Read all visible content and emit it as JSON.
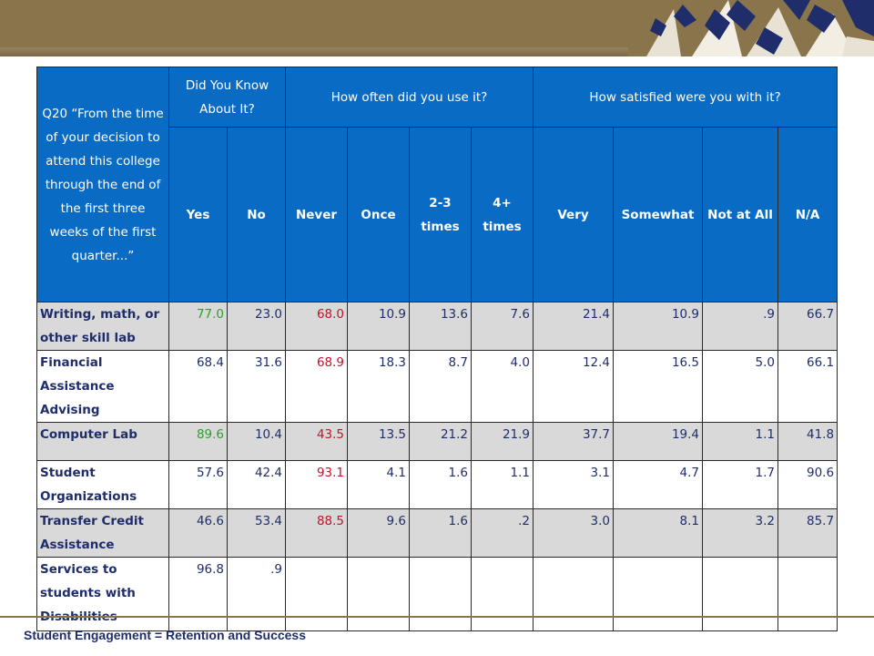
{
  "footer": {
    "text": "Student Engagement = Retention and Success"
  },
  "table": {
    "question_header": "Q20 “From the time of your decision to attend this college through the end of the first three weeks of the first quarter...”",
    "groups": [
      "Did You Know About It?",
      "How often did you use it?",
      "How satisfied were you with it?"
    ],
    "columns": [
      "Yes",
      "No",
      "Never",
      "Once",
      "2-3 times",
      "4+ times",
      "Very",
      "Somewhat",
      "Not at All",
      "N/A"
    ],
    "rows": [
      {
        "label": "Writing, math, or other skill lab",
        "values": [
          "77.0",
          "23.0",
          "68.0",
          "10.9",
          "13.6",
          "7.6",
          "21.4",
          "10.9",
          ".9",
          "66.7"
        ]
      },
      {
        "label": "Financial Assistance Advising",
        "values": [
          "68.4",
          "31.6",
          "68.9",
          "18.3",
          "8.7",
          "4.0",
          "12.4",
          "16.5",
          "5.0",
          "66.1"
        ]
      },
      {
        "label": "Computer Lab",
        "values": [
          "89.6",
          "10.4",
          "43.5",
          "13.5",
          "21.2",
          "21.9",
          "37.7",
          "19.4",
          "1.1",
          "41.8"
        ]
      },
      {
        "label": "Student Organizations",
        "values": [
          "57.6",
          "42.4",
          "93.1",
          "4.1",
          "1.6",
          "1.1",
          "3.1",
          "4.7",
          "1.7",
          "90.6"
        ]
      },
      {
        "label": "Transfer Credit Assistance",
        "values": [
          "46.6",
          "53.4",
          "88.5",
          "9.6",
          "1.6",
          ".2",
          "3.0",
          "8.1",
          "3.2",
          "85.7"
        ]
      },
      {
        "label": "Services to students with Disabilities",
        "values": [
          "96.8",
          ".9",
          "",
          "",
          "",
          "",
          "",
          "",
          "",
          ""
        ]
      }
    ]
  },
  "colors": {
    "header_blue": "#0a6bc4",
    "banner_tan": "#8a744c",
    "star_navy": "#1f2e6b",
    "text_navy": "#1f2e6b",
    "highlight_green": "#2e9e30",
    "highlight_red": "#c0142b",
    "row_shade": "#d9d9d9"
  },
  "icons": {
    "banner_decoration": "stars-decoration-icon"
  }
}
